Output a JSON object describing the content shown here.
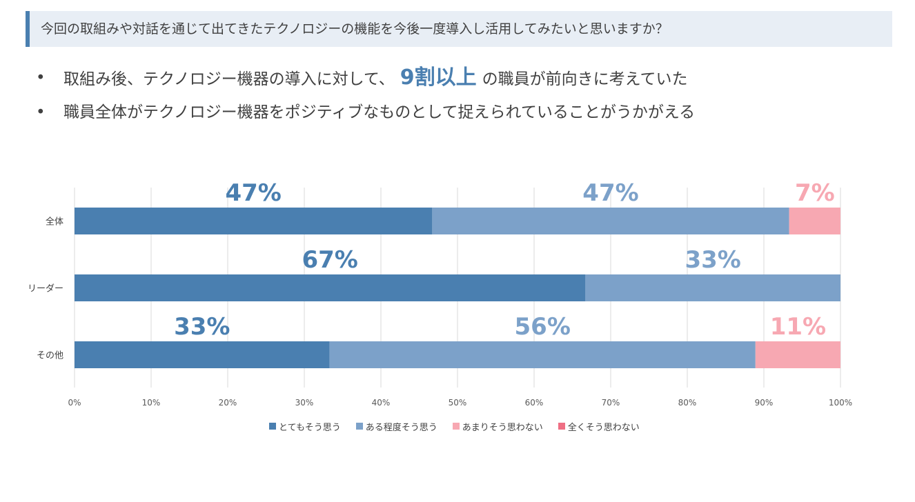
{
  "header": {
    "question": "今回の取組みや対話を通じて出てきたテクノロジーの機能を今後一度導入し活用してみたいと思いますか？"
  },
  "bullets": [
    {
      "dot": "•",
      "before": "取組み後、テクノロジー機器の導入に対して、",
      "highlight": "9割以上",
      "after": "の職員が前向きに考えていた"
    },
    {
      "dot": "•",
      "text": "職員全体がテクノロジー機器をポジティブなものとして捉えられていることがうかがえる"
    }
  ],
  "chart_data": {
    "type": "bar",
    "orientation": "horizontal",
    "stacked": true,
    "categories": [
      "全体",
      "リーダー",
      "その他"
    ],
    "series": [
      {
        "name": "とてもそう思う",
        "values": [
          46.7,
          66.7,
          33.3
        ],
        "labels": [
          "47%",
          "67%",
          "33%"
        ],
        "color": "#4a7fb0",
        "label_color": "#4a7fb0"
      },
      {
        "name": "ある程度そう思う",
        "values": [
          46.6,
          33.3,
          55.6
        ],
        "labels": [
          "47%",
          "33%",
          "56%"
        ],
        "color": "#7ca1c9",
        "label_color": "#7ca1c9"
      },
      {
        "name": "あまりそう思わない",
        "values": [
          6.7,
          0,
          11.1
        ],
        "labels": [
          "7%",
          "",
          "11%"
        ],
        "color": "#f7a8b2",
        "label_color": "#f7a8b2"
      },
      {
        "name": "全くそう思わない",
        "values": [
          0,
          0,
          0
        ],
        "labels": [
          "",
          "",
          ""
        ],
        "color": "#ef6f84",
        "label_color": "#ef6f84"
      }
    ],
    "xlim": [
      0,
      100
    ],
    "xticks": [
      "0%",
      "10%",
      "20%",
      "30%",
      "40%",
      "50%",
      "60%",
      "70%",
      "80%",
      "90%",
      "100%"
    ],
    "grid": true,
    "legend_position": "bottom"
  }
}
